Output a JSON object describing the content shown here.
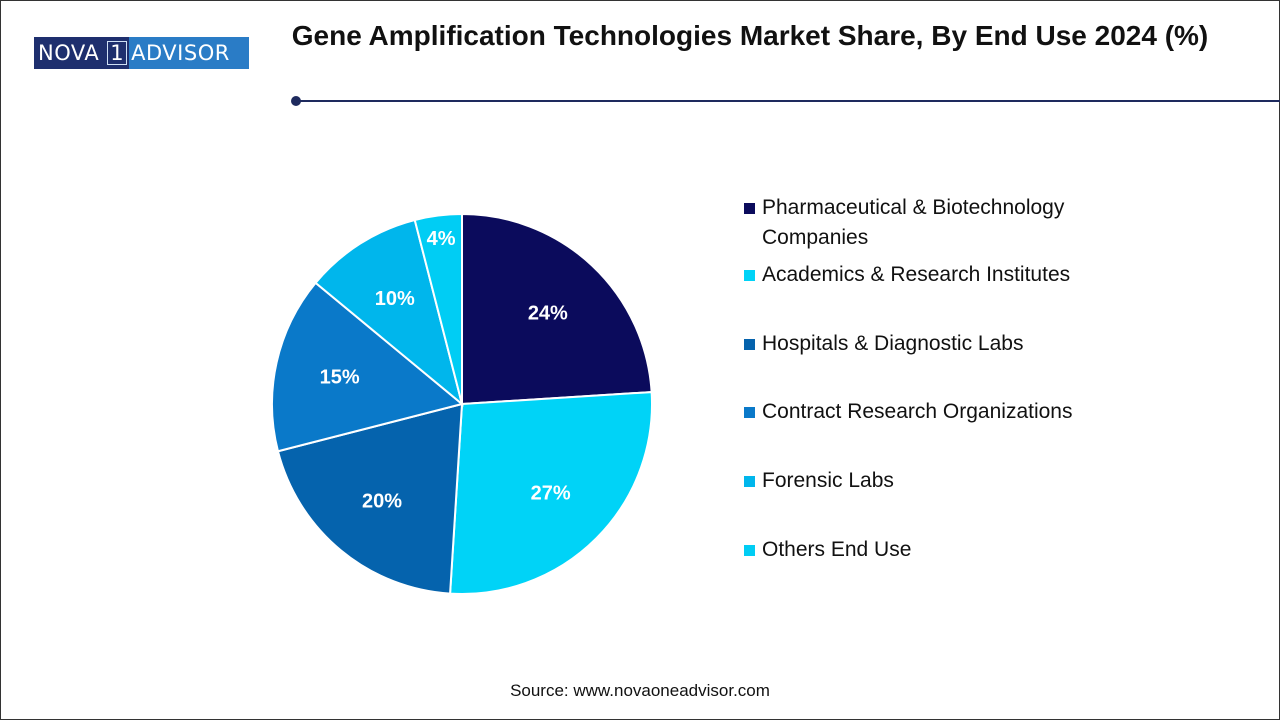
{
  "logo": {
    "left": "NOVA",
    "mark": "1",
    "right": "ADVISOR"
  },
  "title": "Gene Amplification Technologies Market Share, By End Use 2024 (%)",
  "source": "Source: www.novaoneadvisor.com",
  "chart_data": {
    "type": "pie",
    "title": "Gene Amplification Technologies Market Share, By End Use 2024 (%)",
    "categories": [
      "Pharmaceutical & Biotechnology Companies",
      "Academics & Research Institutes",
      "Hospitals & Diagnostic Labs",
      "Contract Research Organizations",
      "Forensic Labs",
      "Others End Use"
    ],
    "values": [
      24,
      27,
      20,
      15,
      10,
      4
    ],
    "labels": [
      "24%",
      "27%",
      "20%",
      "15%",
      "10%",
      "4%"
    ],
    "colors": [
      "#0b0b5c",
      "#00d3f7",
      "#0563ad",
      "#0a79c9",
      "#00b6ec",
      "#00cdf4"
    ],
    "legend_position": "right",
    "start": "top, clockwise"
  }
}
